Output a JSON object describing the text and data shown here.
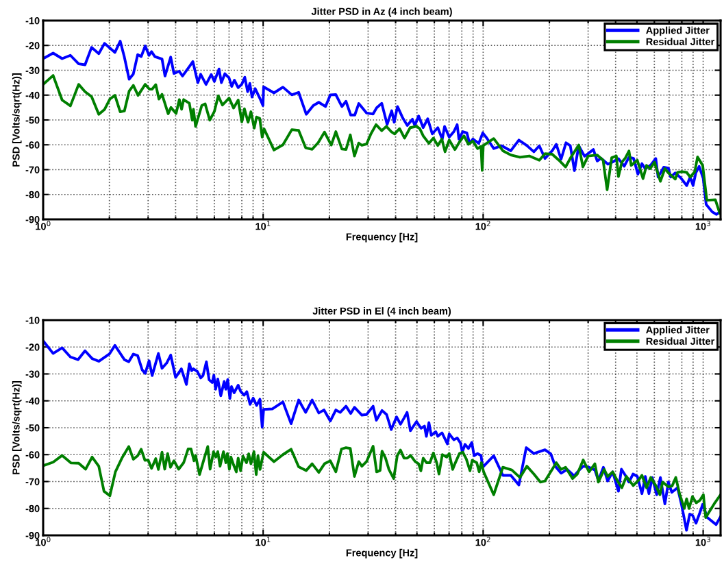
{
  "chart_data": [
    {
      "type": "line",
      "title": "Jitter PSD in Az (4 inch beam)",
      "xlabel": "Frequency [Hz]",
      "ylabel": "PSD [Volts/sqrt(Hz)]",
      "log": "x",
      "grid": true,
      "legend": "top right",
      "marker": "none",
      "line_style": "solid",
      "xlim": [
        1,
        1200
      ],
      "xticks": [
        {
          "value": 1,
          "label": "10$^{0}$"
        },
        {
          "value": 10,
          "label": "10$^{1}$"
        },
        {
          "value": 100,
          "label": "10$^{2}$"
        },
        {
          "value": 1000,
          "label": "10$^{3}$"
        }
      ],
      "ylim": [
        -90,
        -10
      ],
      "yticks": [
        -90,
        -80,
        -70,
        -60,
        -50,
        -40,
        -30,
        -20,
        -10
      ],
      "series": [
        {
          "name": "Applied Jitter",
          "color": "#0000ff",
          "x": [
            1,
            1.11,
            1.22,
            1.33,
            1.45,
            1.55,
            1.66,
            1.79,
            1.9,
            2.12,
            2.24,
            2.34,
            2.46,
            2.57,
            2.69,
            2.79,
            2.91,
            3.03,
            3.11,
            3.22,
            3.47,
            3.58,
            3.8,
            3.93,
            4.15,
            4.3,
            4.62,
            4.79,
            5.05,
            5.2,
            5.5,
            5.81,
            6,
            6.3,
            6.46,
            6.7,
            7,
            7.2,
            7.4,
            7.7,
            8,
            8.25,
            8.5,
            8.7,
            8.9,
            9.2,
            9.65,
            9.98,
            10.05,
            11.2,
            12.3,
            13.5,
            14.5,
            15.7,
            16.9,
            17.9,
            19.2,
            20.2,
            21.4,
            22.8,
            23.8,
            25,
            26.1,
            27.2,
            29.5,
            31.6,
            32.8,
            34.6,
            36.6,
            38.4,
            39.4,
            40.8,
            43.1,
            45.2,
            47.7,
            48.9,
            50.9,
            53.4,
            56,
            58.7,
            62.2,
            65.2,
            66.8,
            70.1,
            73.6,
            76.2,
            77.6,
            80.8,
            84.3,
            86.7,
            89.8,
            95.5,
            99.6,
            103.9,
            111.7,
            121.5,
            133.6,
            145.3,
            158,
            170,
            180,
            191,
            206,
            215,
            226,
            238,
            249,
            260,
            272,
            289,
            317,
            330,
            343,
            369,
            388,
            412,
            438,
            460,
            483,
            505,
            527,
            546,
            580,
            609,
            624,
            662,
            695,
            712,
            747,
            793,
            842,
            873,
            900,
            926,
            959,
            1000,
            1032,
            1100,
            1150,
            1190
          ],
          "values": [
            -25.3,
            -23.1,
            -25.3,
            -24,
            -27.4,
            -27.8,
            -20.8,
            -23.3,
            -19.2,
            -22.8,
            -18.3,
            -24.7,
            -33.6,
            -31.5,
            -23.7,
            -24.5,
            -20.2,
            -24,
            -22.5,
            -24.5,
            -25.5,
            -32.3,
            -24.7,
            -31.3,
            -30.4,
            -32.3,
            -28.5,
            -26.5,
            -35,
            -31.6,
            -35.7,
            -31.7,
            -34.5,
            -29.5,
            -35,
            -31.4,
            -33.1,
            -36.5,
            -34,
            -37,
            -35.6,
            -32.8,
            -38.6,
            -35.3,
            -40.8,
            -37.4,
            -41.2,
            -44.2,
            -36.7,
            -39.1,
            -36.8,
            -39.9,
            -38.9,
            -47.7,
            -44.2,
            -42.9,
            -44.6,
            -39.9,
            -39.8,
            -44.6,
            -42.5,
            -48,
            -48,
            -43.4,
            -47.2,
            -47.6,
            -45.1,
            -43.3,
            -51.8,
            -46.3,
            -50.9,
            -44.6,
            -49.2,
            -52.2,
            -49.7,
            -52.2,
            -48.4,
            -53.1,
            -49.5,
            -55.6,
            -53.1,
            -57.7,
            -52.6,
            -56.9,
            -54.7,
            -51.9,
            -57.7,
            -54.7,
            -55.2,
            -59.4,
            -57.7,
            -59.4,
            -55.2,
            -57.3,
            -61.5,
            -60.4,
            -62.4,
            -58.1,
            -60.3,
            -62.8,
            -60.4,
            -65.5,
            -62.4,
            -59.8,
            -65.8,
            -59.2,
            -60.4,
            -70.4,
            -60.4,
            -64.6,
            -61.9,
            -66.5,
            -65.4,
            -67.8,
            -66.9,
            -65.6,
            -68.6,
            -65,
            -65.5,
            -71.8,
            -67.6,
            -69.7,
            -68,
            -65.5,
            -73,
            -69,
            -69.4,
            -73,
            -71.3,
            -73.4,
            -76.4,
            -73,
            -76.4,
            -71.3,
            -68.7,
            -73.4,
            -84,
            -87,
            -88,
            -87
          ]
        },
        {
          "name": "Residual Jitter",
          "color": "#007f00",
          "x": [
            1,
            1.11,
            1.22,
            1.33,
            1.45,
            1.55,
            1.66,
            1.79,
            1.9,
            2.01,
            2.12,
            2.24,
            2.34,
            2.46,
            2.57,
            2.7,
            2.91,
            3.04,
            3.13,
            3.25,
            3.36,
            3.47,
            3.7,
            3.81,
            4.02,
            4.16,
            4.26,
            4.35,
            4.62,
            4.76,
            4.82,
            4.93,
            5.26,
            5.45,
            5.72,
            6,
            6.25,
            6.53,
            7,
            7.34,
            7.7,
            8,
            8.22,
            8.54,
            8.8,
            9.11,
            9.33,
            9.65,
            9.9,
            10.1,
            11.2,
            12.3,
            13.5,
            14.5,
            15.6,
            16.7,
            17.8,
            19,
            20.4,
            21.4,
            22.8,
            23.8,
            24.9,
            26,
            27.2,
            28.1,
            29.5,
            30.9,
            32.6,
            34.6,
            36.3,
            38.2,
            39.6,
            41.7,
            43.9,
            46.6,
            49.8,
            51.5,
            53.4,
            56.7,
            59.4,
            62.2,
            64.9,
            67.1,
            70.1,
            74.4,
            78,
            81.8,
            85.7,
            89.8,
            94.3,
            97.8,
            99,
            100.1,
            111.7,
            122.9,
            133.6,
            147,
            162,
            180,
            191,
            206,
            221,
            237,
            251,
            272,
            284,
            300,
            330,
            351,
            366,
            384,
            403,
            412,
            427,
            443,
            460,
            471,
            502,
            533,
            553,
            574,
            601,
            639,
            670,
            695,
            747,
            765,
            802,
            842,
            873,
            916,
            943,
            995,
            1039,
            1136,
            1190
          ],
          "values": [
            -35.7,
            -32.1,
            -42,
            -44.3,
            -35.7,
            -38.6,
            -40.6,
            -47.7,
            -45.8,
            -41.6,
            -40.1,
            -46.7,
            -46.4,
            -38.4,
            -36.1,
            -40.1,
            -35.7,
            -37.6,
            -37.6,
            -35.8,
            -41.6,
            -39.7,
            -47.5,
            -45,
            -47.4,
            -41.8,
            -45.7,
            -41.8,
            -43.3,
            -50.1,
            -45.7,
            -52.6,
            -44.2,
            -43.5,
            -50.1,
            -46.6,
            -40.3,
            -44,
            -41.2,
            -45.2,
            -42,
            -50.8,
            -45.5,
            -50.9,
            -46.7,
            -53.3,
            -48.8,
            -49.4,
            -56.9,
            -53.6,
            -62.1,
            -60,
            -53.9,
            -54.2,
            -61.2,
            -61.8,
            -59.1,
            -54.9,
            -60.1,
            -54.7,
            -61.7,
            -61.9,
            -56,
            -64.5,
            -59.3,
            -60.2,
            -59.7,
            -55.6,
            -51.9,
            -54.3,
            -52.6,
            -54.7,
            -55.6,
            -53.5,
            -57.3,
            -53.1,
            -52.6,
            -53.5,
            -56.4,
            -59.4,
            -57.3,
            -60.3,
            -57.7,
            -62.8,
            -58.1,
            -61.9,
            -58.9,
            -56.4,
            -59.8,
            -58.5,
            -61.5,
            -60.7,
            -70.3,
            -60.3,
            -57.5,
            -62.4,
            -64.1,
            -65,
            -64.5,
            -66.2,
            -63.6,
            -63.8,
            -66.2,
            -68.9,
            -64.9,
            -60.1,
            -68.9,
            -64.5,
            -64.1,
            -66.2,
            -78.1,
            -65.2,
            -64.5,
            -72.8,
            -67,
            -65.3,
            -62.5,
            -68.3,
            -66.2,
            -73.6,
            -68.3,
            -69.6,
            -67,
            -74.7,
            -69.6,
            -71.3,
            -73.8,
            -71.1,
            -70.8,
            -71.1,
            -73,
            -70.8,
            -64.9,
            -68.3,
            -82.3,
            -82.1,
            -87.5
          ]
        }
      ]
    },
    {
      "type": "line",
      "title": "Jitter PSD in El (4 inch beam)",
      "xlabel": "Frequency [Hz]",
      "ylabel": "PSD [Volts/sqrt(Hz)]",
      "log": "x",
      "grid": true,
      "legend": "top right",
      "marker": "none",
      "line_style": "solid",
      "xlim": [
        1,
        1200
      ],
      "xticks": [
        {
          "value": 1,
          "label": "10$^{0}$"
        },
        {
          "value": 10,
          "label": "10$^{1}$"
        },
        {
          "value": 100,
          "label": "10$^{2}$"
        },
        {
          "value": 1000,
          "label": "10$^{3}$"
        }
      ],
      "ylim": [
        -90,
        -10
      ],
      "yticks": [
        -90,
        -80,
        -70,
        -60,
        -50,
        -40,
        -30,
        -20,
        -10
      ],
      "series": [
        {
          "name": "Applied Jitter",
          "color": "#0000ff",
          "x": [
            1,
            1.11,
            1.22,
            1.33,
            1.44,
            1.55,
            1.67,
            1.79,
            2,
            2.12,
            2.34,
            2.45,
            2.57,
            2.69,
            2.82,
            2.91,
            3.03,
            3.13,
            3.34,
            3.47,
            3.64,
            3.8,
            4,
            4.25,
            4.48,
            4.62,
            4.73,
            4.82,
            5.02,
            5.2,
            5.33,
            5.52,
            5.68,
            5.87,
            5.97,
            6.08,
            6.22,
            6.42,
            6.65,
            6.77,
            6.9,
            7.06,
            7.18,
            7.38,
            7.7,
            7.89,
            8.19,
            8.43,
            8.72,
            9.01,
            9.34,
            9.67,
            9.9,
            10.05,
            11,
            12.3,
            13.4,
            14.5,
            15.6,
            16.7,
            17.9,
            18.9,
            20.2,
            21.4,
            22.4,
            23.8,
            25,
            26,
            28.1,
            29.5,
            31.6,
            32.7,
            34.7,
            36.4,
            38.2,
            40.4,
            42.1,
            43.7,
            45.1,
            46.7,
            49.8,
            52.2,
            54.1,
            55.2,
            56.7,
            58.1,
            60.9,
            62.2,
            65,
            68.8,
            70.1,
            73.6,
            76.2,
            78.9,
            80.4,
            82.7,
            85.7,
            88.8,
            91,
            94.3,
            97.8,
            99.5,
            111.7,
            122.9,
            133.6,
            145.3,
            157,
            170,
            191,
            203,
            213,
            226,
            241,
            259,
            272,
            285,
            303,
            322,
            334,
            352,
            368,
            388,
            412,
            425,
            443,
            460,
            480,
            502,
            527,
            546,
            567,
            587,
            615,
            639,
            670,
            695,
            720,
            765,
            798,
            840,
            869,
            896,
            928,
            965,
            995,
            1045,
            1145,
            1200
          ],
          "values": [
            -17.7,
            -22.4,
            -20.3,
            -23.7,
            -24.7,
            -21.4,
            -24.3,
            -25.3,
            -22.6,
            -19.4,
            -24.7,
            -25.5,
            -22.6,
            -23.2,
            -28.5,
            -29.8,
            -25.1,
            -30.6,
            -22.4,
            -27.9,
            -26,
            -23,
            -31.3,
            -28.1,
            -33.9,
            -26.2,
            -28.8,
            -28.1,
            -29.1,
            -31.5,
            -30.6,
            -25.5,
            -32.2,
            -33.2,
            -30.5,
            -35.7,
            -31.9,
            -38.1,
            -32.8,
            -35.7,
            -32.1,
            -39.1,
            -34.7,
            -37,
            -34.2,
            -36.4,
            -37.9,
            -36.6,
            -41.3,
            -39,
            -41.7,
            -39.4,
            -49.8,
            -43.2,
            -43,
            -40.4,
            -48.5,
            -39.7,
            -44.3,
            -39.7,
            -44.5,
            -43.4,
            -47.5,
            -43.4,
            -44.3,
            -42,
            -44.7,
            -42.4,
            -45.3,
            -45.1,
            -42,
            -47.2,
            -43.6,
            -45.1,
            -50.7,
            -46,
            -48.7,
            -46.4,
            -44.3,
            -51.1,
            -47.7,
            -50.2,
            -49.4,
            -53.2,
            -48.1,
            -52.8,
            -51.5,
            -53.2,
            -51.9,
            -56,
            -52.3,
            -54.5,
            -53.8,
            -55.7,
            -59.1,
            -56.2,
            -57.7,
            -55.5,
            -60.4,
            -59.6,
            -60.3,
            -64.7,
            -60.4,
            -67.7,
            -67.7,
            -71.3,
            -57.4,
            -59.6,
            -58.2,
            -59.7,
            -64.4,
            -66.9,
            -65.5,
            -67.9,
            -65.9,
            -64.3,
            -64.7,
            -65.7,
            -69.6,
            -64.7,
            -69.8,
            -66.4,
            -73.6,
            -65.4,
            -67.7,
            -70.2,
            -67.2,
            -68.1,
            -74.5,
            -68.1,
            -74.5,
            -68.5,
            -74.9,
            -68.5,
            -78.3,
            -70.2,
            -74,
            -72.3,
            -78.7,
            -88.1,
            -82.1,
            -82.6,
            -85.5,
            -81.7,
            -78.5,
            -83.4,
            -86,
            -83
          ]
        },
        {
          "name": "Residual Jitter",
          "color": "#007f00",
          "x": [
            1,
            1.11,
            1.22,
            1.34,
            1.45,
            1.56,
            1.67,
            1.79,
            1.89,
            2.01,
            2.13,
            2.28,
            2.45,
            2.57,
            2.69,
            2.79,
            2.9,
            3,
            3.11,
            3.25,
            3.34,
            3.47,
            3.57,
            3.68,
            3.79,
            3.93,
            4.13,
            4.35,
            4.56,
            4.7,
            4.85,
            4.93,
            5.14,
            5.4,
            5.6,
            5.74,
            5.95,
            6.09,
            6.22,
            6.37,
            6.6,
            6.77,
            6.88,
            7.02,
            7.14,
            7.33,
            7.55,
            7.7,
            7.9,
            8.1,
            8.4,
            8.6,
            8.8,
            9.08,
            9.3,
            9.47,
            9.68,
            10.05,
            11.2,
            12.3,
            13.4,
            14.5,
            15.7,
            16.7,
            17.9,
            19,
            20.2,
            21.4,
            22.7,
            23.8,
            24.9,
            26,
            27.2,
            28.1,
            29.5,
            31.6,
            32.8,
            34,
            34.7,
            36,
            37.3,
            39.2,
            40.7,
            42.1,
            43.7,
            45.2,
            46.8,
            49.1,
            50.9,
            52.1,
            53.4,
            55.3,
            57.3,
            59.4,
            61.5,
            63,
            65.2,
            68.3,
            70.1,
            72.7,
            74.4,
            78,
            80.8,
            83.9,
            87.1,
            89.2,
            93.5,
            95.9,
            98.1,
            100.5,
            111.7,
            122.9,
            135,
            147,
            158,
            170,
            182,
            191,
            206,
            215,
            226,
            237,
            255,
            268,
            285,
            303,
            322,
            334,
            355,
            368,
            388,
            408,
            427,
            448,
            481,
            510,
            527,
            553,
            578,
            609,
            636,
            654,
            694,
            722,
            751,
            783,
            821,
            841,
            863,
            894,
            930,
            966,
            1002,
            1027,
            1130,
            1200
          ],
          "values": [
            -64.1,
            -62.8,
            -60.3,
            -63.1,
            -63.2,
            -65.4,
            -60.9,
            -64.3,
            -73.6,
            -75.3,
            -66.4,
            -61.3,
            -57,
            -61.7,
            -60.4,
            -58,
            -62.1,
            -62,
            -65.1,
            -61.5,
            -65.5,
            -59.1,
            -65.4,
            -59.6,
            -64.7,
            -62.3,
            -65.4,
            -63,
            -57.9,
            -57.9,
            -62.3,
            -60.3,
            -67.4,
            -61.3,
            -57,
            -65.4,
            -58.9,
            -60.9,
            -58.9,
            -64.3,
            -58.9,
            -63,
            -59.6,
            -65.4,
            -60.9,
            -63.7,
            -66.4,
            -61.3,
            -66,
            -60.6,
            -63,
            -59.7,
            -63.4,
            -58.9,
            -67.4,
            -60.4,
            -65.5,
            -59.1,
            -62.6,
            -60,
            -58,
            -64.5,
            -65.9,
            -63.4,
            -66.6,
            -63.4,
            -62.3,
            -66.4,
            -57.9,
            -57.4,
            -57.7,
            -68.1,
            -62.6,
            -64.3,
            -62.6,
            -56.9,
            -66.4,
            -65.9,
            -58.7,
            -61.3,
            -65.5,
            -68.9,
            -60.4,
            -58.3,
            -61.3,
            -61.3,
            -60.3,
            -62.6,
            -63.4,
            -66,
            -61.3,
            -63,
            -63,
            -59.4,
            -63,
            -67.2,
            -60,
            -60.9,
            -59.6,
            -65.5,
            -63.4,
            -59.6,
            -59.1,
            -61.7,
            -66,
            -62.1,
            -63,
            -66.4,
            -63,
            -66.4,
            -74.9,
            -64.7,
            -65.7,
            -68.5,
            -64.3,
            -67.2,
            -70.2,
            -69.8,
            -65.5,
            -63,
            -65.5,
            -64.7,
            -68.9,
            -67.2,
            -62,
            -66.4,
            -63.4,
            -70.2,
            -65.5,
            -68.1,
            -66.4,
            -69.8,
            -72.3,
            -68.1,
            -71.5,
            -69.4,
            -67.7,
            -72.3,
            -68.5,
            -71.5,
            -74.9,
            -70.2,
            -71.9,
            -71.7,
            -68.5,
            -74.9,
            -80,
            -76.4,
            -80,
            -75.6,
            -77.9,
            -77,
            -74.9,
            -83.4,
            -77.9,
            -74.9
          ]
        }
      ]
    }
  ]
}
